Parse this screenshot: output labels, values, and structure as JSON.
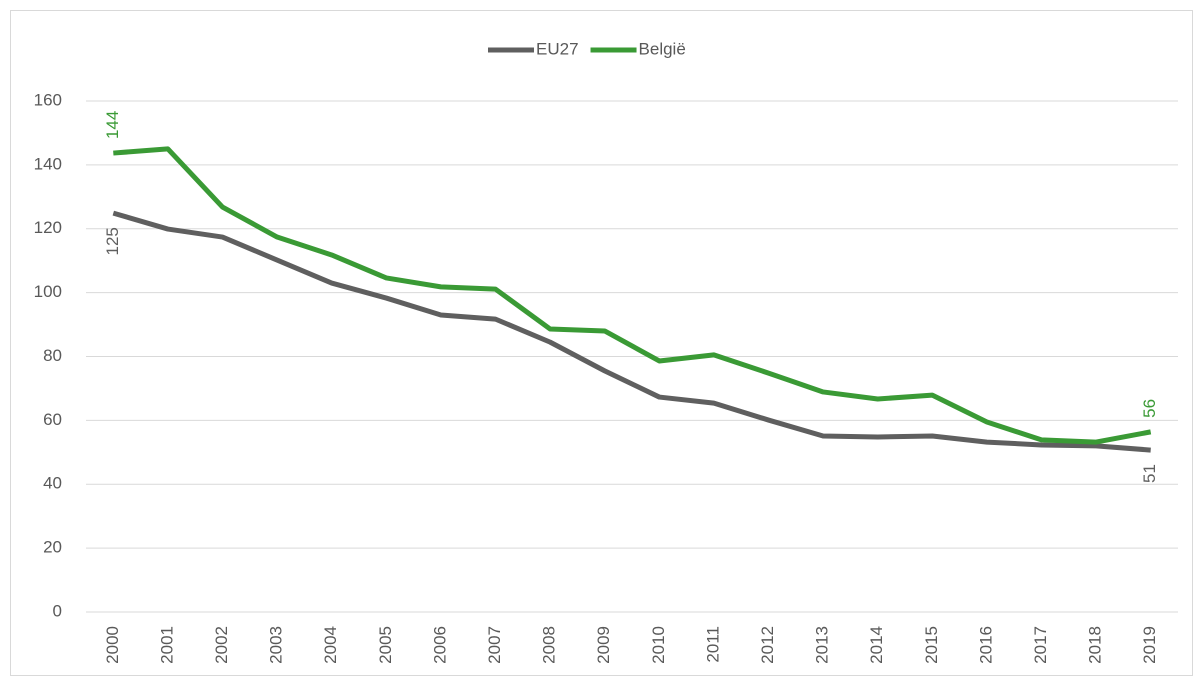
{
  "chart_data": {
    "type": "line",
    "categories": [
      "2000",
      "2001",
      "2002",
      "2003",
      "2004",
      "2005",
      "2006",
      "2007",
      "2008",
      "2009",
      "2010",
      "2011",
      "2012",
      "2013",
      "2014",
      "2015",
      "2016",
      "2017",
      "2018",
      "2019"
    ],
    "series": [
      {
        "name": "EU27",
        "color": "#5f5f5f",
        "values": [
          124.9,
          119.9,
          117.4,
          110.2,
          103,
          98.3,
          93,
          91.7,
          84.5,
          75.5,
          67.3,
          65.4,
          60.1,
          55.1,
          54.8,
          55.1,
          53.2,
          52.3,
          52,
          50.7
        ],
        "value_labels": [
          "125",
          null,
          null,
          null,
          null,
          null,
          null,
          null,
          null,
          null,
          null,
          null,
          null,
          null,
          null,
          null,
          null,
          null,
          null,
          "51"
        ]
      },
      {
        "name": "België",
        "color": "#3a9a35",
        "values": [
          143.7,
          145,
          126.8,
          117.4,
          111.8,
          104.6,
          101.8,
          101.1,
          88.6,
          88,
          78.6,
          80.5,
          74.8,
          68.9,
          66.7,
          67.9,
          59.5,
          53.9,
          53.2,
          56.4
        ],
        "value_labels": [
          "144",
          null,
          null,
          null,
          null,
          null,
          null,
          null,
          null,
          null,
          null,
          null,
          null,
          null,
          null,
          null,
          null,
          null,
          null,
          "56"
        ]
      }
    ],
    "ylim": [
      0,
      160
    ],
    "yticks": [
      0,
      20,
      40,
      60,
      80,
      100,
      120,
      140,
      160
    ],
    "grid": true,
    "legend": "top"
  }
}
